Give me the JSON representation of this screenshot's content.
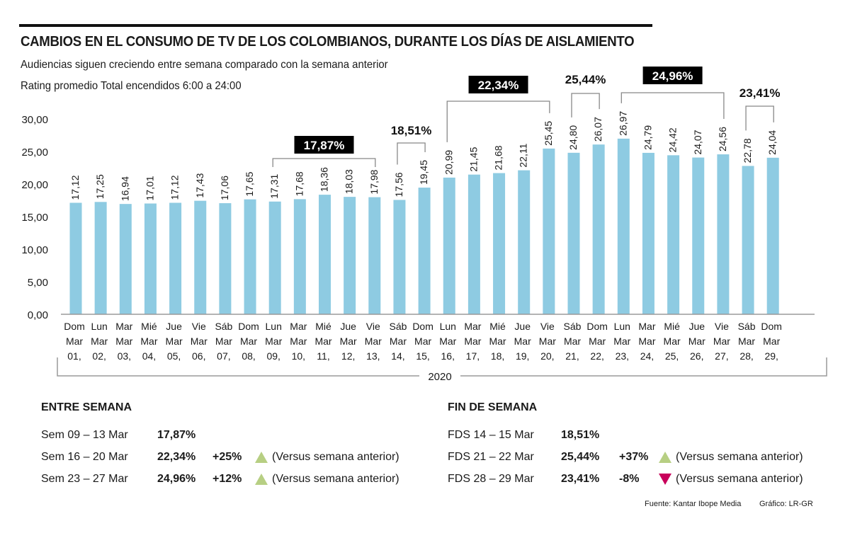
{
  "header": {
    "title": "CAMBIOS EN EL CONSUMO DE TV DE LOS COLOMBIANOS, DURANTE LOS DÍAS DE AISLAMIENTO",
    "subtitle1": "Audiencias siguen creciendo entre semana comparado con la semana anterior",
    "subtitle2": "Rating promedio Total encendidos 6:00 a 24:00"
  },
  "chart_data": {
    "type": "bar",
    "title": "CAMBIOS EN EL CONSUMO DE TV DE LOS COLOMBIANOS, DURANTE LOS DÍAS DE AISLAMIENTO",
    "ylabel": "Rating promedio Total encendidos 6:00 a 24:00",
    "xlabel": "2020",
    "ylim": [
      0,
      30
    ],
    "yticks": [
      "0,00",
      "5,00",
      "10,00",
      "15,00",
      "20,00",
      "25,00",
      "30,00"
    ],
    "bar_color": "#8ecbe2",
    "categories": [
      [
        "Dom",
        "Mar",
        "01,"
      ],
      [
        "Lun",
        "Mar",
        "02,"
      ],
      [
        "Mar",
        "Mar",
        "03,"
      ],
      [
        "Mié",
        "Mar",
        "04,"
      ],
      [
        "Jue",
        "Mar",
        "05,"
      ],
      [
        "Vie",
        "Mar",
        "06,"
      ],
      [
        "Sáb",
        "Mar",
        "07,"
      ],
      [
        "Dom",
        "Mar",
        "08,"
      ],
      [
        "Lun",
        "Mar",
        "09,"
      ],
      [
        "Mar",
        "Mar",
        "10,"
      ],
      [
        "Mié",
        "Mar",
        "11,"
      ],
      [
        "Jue",
        "Mar",
        "12,"
      ],
      [
        "Vie",
        "Mar",
        "13,"
      ],
      [
        "Sáb",
        "Mar",
        "14,"
      ],
      [
        "Dom",
        "Mar",
        "15,"
      ],
      [
        "Lun",
        "Mar",
        "16,"
      ],
      [
        "Mar",
        "Mar",
        "17,"
      ],
      [
        "Mié",
        "Mar",
        "18,"
      ],
      [
        "Jue",
        "Mar",
        "19,"
      ],
      [
        "Vie",
        "Mar",
        "20,"
      ],
      [
        "Sáb",
        "Mar",
        "21,"
      ],
      [
        "Dom",
        "Mar",
        "22,"
      ],
      [
        "Lun",
        "Mar",
        "23,"
      ],
      [
        "Mar",
        "Mar",
        "24,"
      ],
      [
        "Mié",
        "Mar",
        "25,"
      ],
      [
        "Jue",
        "Mar",
        "26,"
      ],
      [
        "Vie",
        "Mar",
        "27,"
      ],
      [
        "Sáb",
        "Mar",
        "28,"
      ],
      [
        "Dom",
        "Mar",
        "29,"
      ]
    ],
    "values": [
      17.12,
      17.25,
      16.94,
      17.01,
      17.12,
      17.43,
      17.06,
      17.65,
      17.31,
      17.68,
      18.36,
      18.03,
      17.98,
      17.56,
      19.45,
      20.99,
      21.45,
      21.68,
      22.11,
      25.45,
      24.8,
      26.07,
      26.97,
      24.79,
      24.42,
      24.07,
      24.56,
      22.78,
      24.04
    ],
    "value_labels": [
      "17,12",
      "17,25",
      "16,94",
      "17,01",
      "17,12",
      "17,43",
      "17,06",
      "17,65",
      "17,31",
      "17,68",
      "18,36",
      "18,03",
      "17,98",
      "17,56",
      "19,45",
      "20,99",
      "21,45",
      "21,68",
      "22,11",
      "25,45",
      "24,80",
      "26,07",
      "26,97",
      "24,79",
      "24,42",
      "24,07",
      "24,56",
      "22,78",
      "24,04"
    ],
    "annotations": [
      {
        "label": "17,87%",
        "from": 8,
        "to": 12,
        "style": "boxed"
      },
      {
        "label": "18,51%",
        "from": 13,
        "to": 14,
        "style": "plain"
      },
      {
        "label": "22,34%",
        "from": 15,
        "to": 19,
        "style": "boxed"
      },
      {
        "label": "25,44%",
        "from": 20,
        "to": 21,
        "style": "plain"
      },
      {
        "label": "24,96%",
        "from": 22,
        "to": 26,
        "style": "boxed"
      },
      {
        "label": "23,41%",
        "from": 27,
        "to": 28,
        "style": "plain"
      }
    ],
    "year_label": "2020",
    "grid": false
  },
  "weekdays": {
    "heading": "ENTRE SEMANA",
    "rows": [
      {
        "period": "Sem 09  – 13 Mar",
        "pct": "17,87%",
        "change": "",
        "trend": "",
        "note": ""
      },
      {
        "period": "Sem 16  – 20 Mar",
        "pct": "22,34%",
        "change": "+25%",
        "trend": "up",
        "note": "(Versus semana anterior)"
      },
      {
        "period": "Sem 23  – 27 Mar",
        "pct": "24,96%",
        "change": "+12%",
        "trend": "up",
        "note": "(Versus semana anterior)"
      }
    ]
  },
  "weekends": {
    "heading": "FIN DE SEMANA",
    "rows": [
      {
        "period": "FDS 14 – 15 Mar",
        "pct": "18,51%",
        "change": "",
        "trend": "",
        "note": ""
      },
      {
        "period": "FDS 21  – 22 Mar",
        "pct": "25,44%",
        "change": "+37%",
        "trend": "up",
        "note": "(Versus semana anterior)"
      },
      {
        "period": "FDS 28 – 29 Mar",
        "pct": "23,41%",
        "change": "-8%",
        "trend": "down",
        "note": "(Versus semana anterior)"
      }
    ]
  },
  "colors": {
    "up": "#b7cf83",
    "down": "#c8005b",
    "bar": "#8ecbe2"
  },
  "footer": {
    "source": "Fuente: Kantar Ibope Media",
    "credit": "Gráfico: LR-GR"
  }
}
